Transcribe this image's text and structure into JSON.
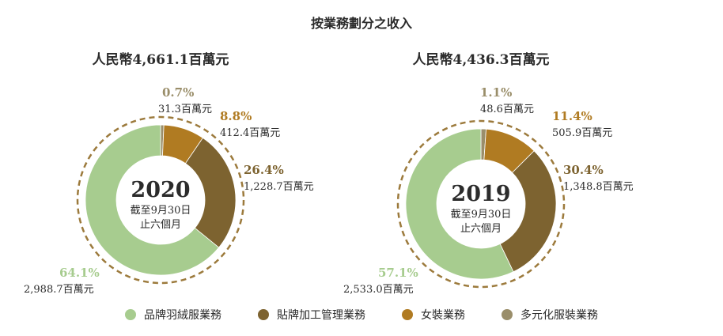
{
  "chart_data": {
    "type": "pie",
    "title": "按業務劃分之收入",
    "legend_position": "bottom",
    "series_colors": {
      "brand": "#a7cc8f",
      "oem": "#7d6330",
      "women": "#b07b22",
      "diversified": "#9a8e6a"
    },
    "legend": [
      {
        "key": "brand",
        "label": "品牌羽絨服業務"
      },
      {
        "key": "oem",
        "label": "貼牌加工管理業務"
      },
      {
        "key": "women",
        "label": "女裝業務"
      },
      {
        "key": "diversified",
        "label": "多元化服裝業務"
      }
    ],
    "charts": [
      {
        "year": "2020",
        "period_line1": "截至9月30日",
        "period_line2": "止六個月",
        "total_label": "人民幣4,661.1百萬元",
        "slices": [
          {
            "key": "diversified",
            "percent": 0.7,
            "percent_label": "0.7%",
            "value_label": "31.3百萬元"
          },
          {
            "key": "women",
            "percent": 8.8,
            "percent_label": "8.8%",
            "value_label": "412.4百萬元"
          },
          {
            "key": "oem",
            "percent": 26.4,
            "percent_label": "26.4%",
            "value_label": "1,228.7百萬元"
          },
          {
            "key": "brand",
            "percent": 64.1,
            "percent_label": "64.1%",
            "value_label": "2,988.7百萬元"
          }
        ]
      },
      {
        "year": "2019",
        "period_line1": "截至9月30日",
        "period_line2": "止六個月",
        "total_label": "人民幣4,436.3百萬元",
        "slices": [
          {
            "key": "diversified",
            "percent": 1.1,
            "percent_label": "1.1%",
            "value_label": "48.6百萬元"
          },
          {
            "key": "women",
            "percent": 11.4,
            "percent_label": "11.4%",
            "value_label": "505.9百萬元"
          },
          {
            "key": "oem",
            "percent": 30.4,
            "percent_label": "30.4%",
            "value_label": "1,348.8百萬元"
          },
          {
            "key": "brand",
            "percent": 57.1,
            "percent_label": "57.1%",
            "value_label": "2,533.0百萬元"
          }
        ]
      }
    ]
  }
}
